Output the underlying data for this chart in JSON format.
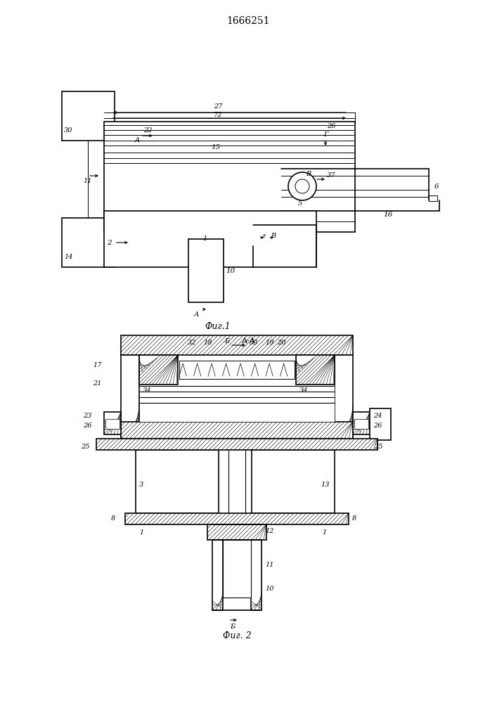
{
  "title": "1666251",
  "fig1_label": "Фиг.1",
  "fig2_label": "Фиг. 2",
  "section_label": "A-A",
  "bg_color": "#ffffff",
  "line_color": "#000000"
}
